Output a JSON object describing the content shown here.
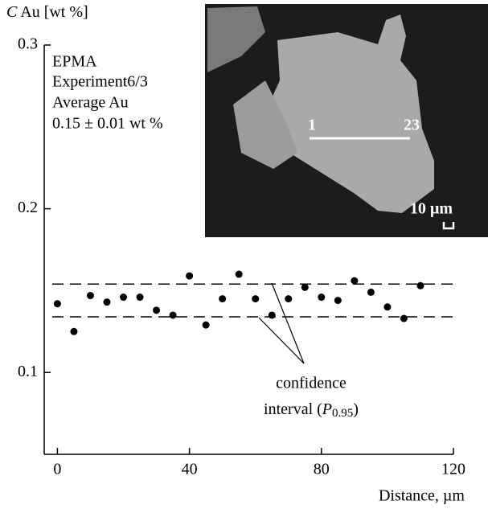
{
  "chart_data": {
    "type": "scatter",
    "y_label_symbol": "C",
    "y_label": "Au [wt %]",
    "x_label": "Distance, µm",
    "annotation": [
      "EPMA",
      "Experiment6/3",
      "Average Au",
      "0.15 ± 0.01 wt %"
    ],
    "interval_label": {
      "line1": "confidence",
      "line2_start": "interval (",
      "symbol": "P",
      "subscript": "0.95",
      "line2_end": ")"
    },
    "inset_labels": {
      "start": "1",
      "end": "23",
      "scale": "10 µm"
    },
    "xlim": [
      -4,
      120
    ],
    "xticks": [
      0,
      40,
      80,
      120
    ],
    "ylim": [
      0.05,
      0.3
    ],
    "yticks": [
      0.1,
      0.2,
      0.3
    ],
    "hlines": [
      0.154,
      0.134
    ],
    "series": [
      {
        "color": "#000000",
        "x": [
          0,
          5,
          10,
          15,
          20,
          25,
          30,
          35,
          40,
          45,
          50,
          55,
          60,
          65,
          70,
          75,
          80,
          85,
          90,
          95,
          100,
          105,
          110
        ],
        "values": [
          0.142,
          0.125,
          0.147,
          0.143,
          0.146,
          0.146,
          0.138,
          0.135,
          0.159,
          0.129,
          0.145,
          0.16,
          0.145,
          0.135,
          0.145,
          0.152,
          0.146,
          0.144,
          0.156,
          0.149,
          0.14,
          0.133,
          0.153
        ]
      }
    ]
  }
}
